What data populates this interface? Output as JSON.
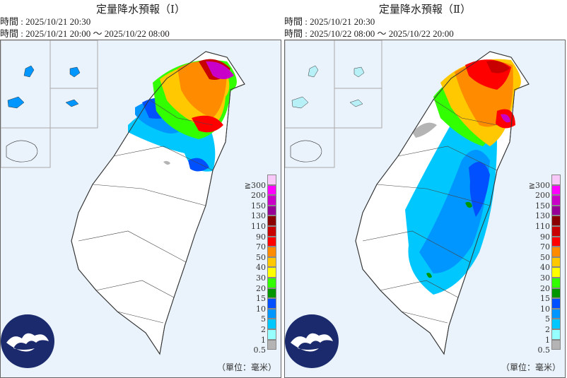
{
  "panels": [
    {
      "title": "定量降水預報（Ⅰ）",
      "issue_line": "時間 : 2025/10/21 20:30",
      "valid_line": "時間 : 2025/10/21 20:00 ～ 2025/10/22 08:00"
    },
    {
      "title": "定量降水預報（Ⅱ）",
      "issue_line": "時間 : 2025/10/21 20:30",
      "valid_line": "時間 : 2025/10/22 08:00 ～ 2025/10/22 20:00"
    }
  ],
  "legend": {
    "labels": [
      "≧300",
      "200",
      "150",
      "130",
      "110",
      "90",
      "70",
      "50",
      "40",
      "30",
      "20",
      "15",
      "10",
      "5",
      "2",
      "1",
      "0.5"
    ],
    "colors": [
      "#f8c8f8",
      "#ff00ff",
      "#c800c8",
      "#960096",
      "#8b0000",
      "#c80000",
      "#ff0000",
      "#ff8c00",
      "#ffc800",
      "#ffff00",
      "#32ff00",
      "#009600",
      "#0050ff",
      "#0096ff",
      "#00c8ff",
      "#96ffff",
      "#b4b4b4"
    ],
    "unit": "（單位：毫米）"
  },
  "logo": "cwa-cloud-logo"
}
